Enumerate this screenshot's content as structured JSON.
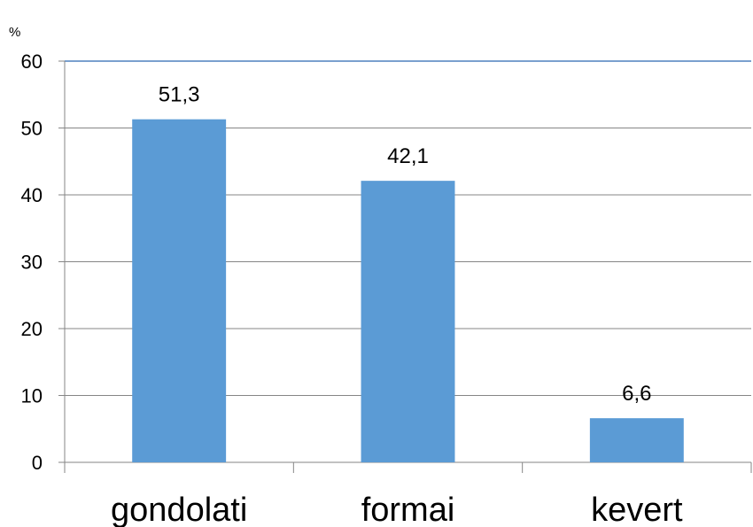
{
  "chart_data": {
    "type": "bar",
    "unit_label": "%",
    "categories": [
      "gondolati",
      "formai",
      "kevert"
    ],
    "values": [
      51.3,
      42.1,
      6.6
    ],
    "data_labels": [
      "51,3",
      "42,1",
      "6,6"
    ],
    "title": "",
    "xlabel": "",
    "ylabel": "",
    "ylim": [
      0,
      60
    ],
    "yticks": [
      0,
      10,
      20,
      30,
      40,
      50,
      60
    ],
    "grid": true,
    "legend": "none",
    "bar_color": "#5b9bd5",
    "grid_color": "#868686"
  }
}
